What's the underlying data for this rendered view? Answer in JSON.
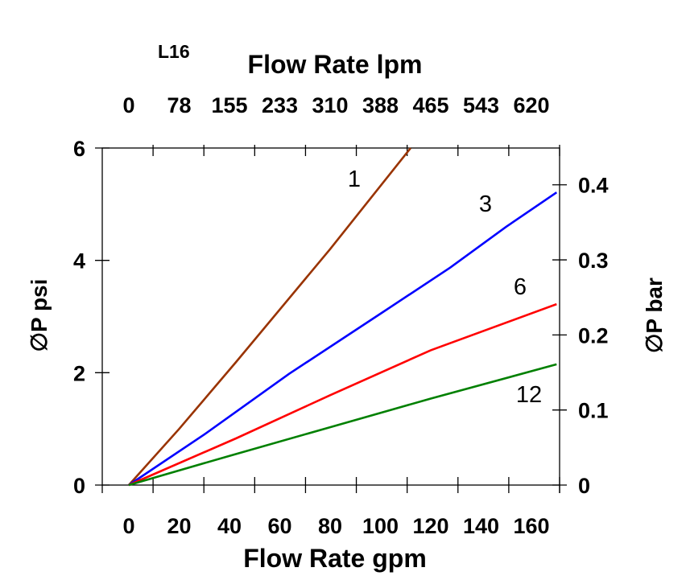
{
  "chart_data": {
    "type": "line",
    "chart_tag": "L16",
    "top_axis": {
      "label": "Flow Rate lpm",
      "tick_labels": [
        "0",
        "78",
        "155",
        "233",
        "310",
        "388",
        "465",
        "543",
        "620"
      ]
    },
    "xlabel": "Flow Rate gpm",
    "x_tick_labels": [
      "0",
      "20",
      "40",
      "60",
      "80",
      "100",
      "120",
      "140",
      "160"
    ],
    "x_ticks": [
      0,
      20,
      40,
      60,
      80,
      100,
      120,
      140,
      160
    ],
    "xlim": [
      -10.5,
      171
    ],
    "ylabel": "∅P psi",
    "y_ticks": [
      0,
      2,
      4,
      6
    ],
    "y_tick_labels": [
      "0",
      "2",
      "4",
      "6"
    ],
    "ylim": [
      0,
      6
    ],
    "y2label": "∅P bar",
    "y2_ticks": [
      0,
      0.1,
      0.2,
      0.3,
      0.4
    ],
    "y2_tick_labels": [
      "0",
      "0.1",
      "0.2",
      "0.3",
      "0.4"
    ],
    "y2lim": [
      0,
      0.449
    ],
    "grid": false,
    "series": [
      {
        "name": "1",
        "color": "#993300",
        "x": [
          0,
          20,
          42.6,
          80,
          112
        ],
        "y": [
          0,
          1.0,
          2.19,
          4.2,
          6.0
        ]
      },
      {
        "name": "3",
        "color": "#0000ff",
        "x": [
          0,
          30,
          63.7,
          100,
          127.7,
          150,
          170
        ],
        "y": [
          0,
          0.9,
          1.98,
          3.05,
          3.87,
          4.6,
          5.21
        ]
      },
      {
        "name": "6",
        "color": "#ff0000",
        "x": [
          0,
          42.6,
          80,
          120,
          170
        ],
        "y": [
          0,
          0.83,
          1.6,
          2.4,
          3.22
        ]
      },
      {
        "name": "12",
        "color": "#008000",
        "x": [
          0,
          40,
          80,
          120,
          170
        ],
        "y": [
          0,
          0.52,
          1.03,
          1.54,
          2.15
        ]
      }
    ]
  }
}
